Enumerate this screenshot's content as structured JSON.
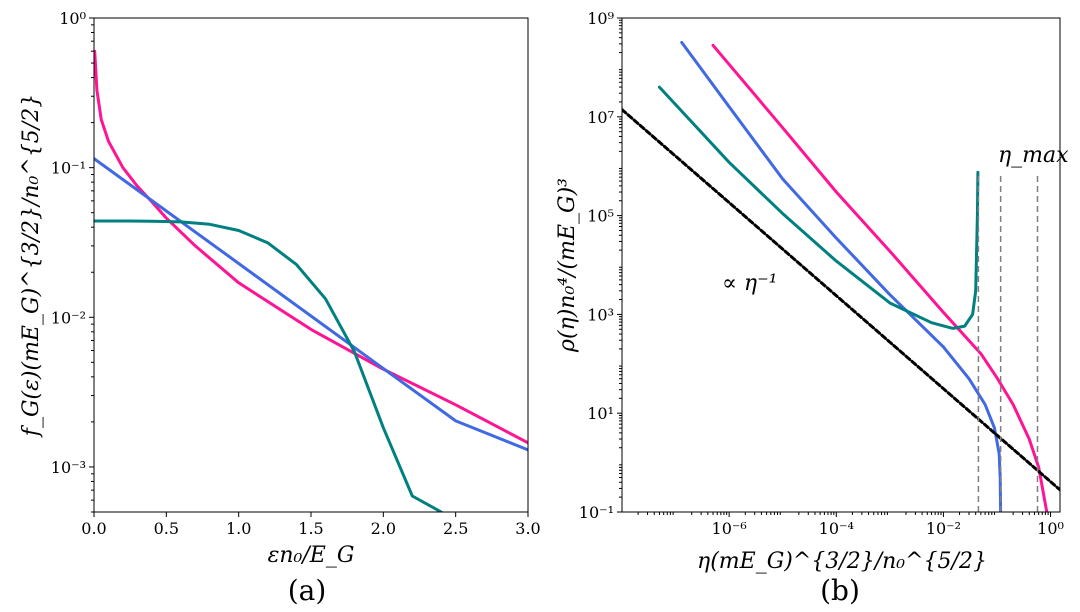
{
  "chart_data": [
    {
      "type": "line",
      "panel_label": "(a)",
      "xlabel": "εn₀/E_G",
      "ylabel": "f_G(ε)(mE_G)^{3/2}/n₀^{5/2}",
      "xscale": "linear",
      "yscale": "log",
      "xlim": [
        0,
        3.0
      ],
      "ylim": [
        0.0005,
        1.0
      ],
      "xticks": [
        0.0,
        0.5,
        1.0,
        1.5,
        2.0,
        2.5,
        3.0
      ],
      "xticklabels": [
        "0.0",
        "0.5",
        "1.0",
        "1.5",
        "2.0",
        "2.5",
        "3.0"
      ],
      "yticks": [
        0.001,
        0.01,
        0.1,
        1.0
      ],
      "yticklabels": [
        "10⁻³",
        "10⁻²",
        "10⁻¹",
        "10⁰"
      ],
      "series": [
        {
          "name": "magenta",
          "color": "#ff1493",
          "x": [
            0.005,
            0.02,
            0.05,
            0.1,
            0.2,
            0.3,
            0.4,
            0.5,
            0.7,
            1.0,
            1.5,
            2.0,
            2.5,
            3.0
          ],
          "y": [
            0.6,
            0.33,
            0.21,
            0.15,
            0.1,
            0.075,
            0.059,
            0.046,
            0.03,
            0.017,
            0.0083,
            0.0045,
            0.0026,
            0.00145
          ]
        },
        {
          "name": "blue",
          "color": "#4169e1",
          "x": [
            0.0,
            0.5,
            1.0,
            1.5,
            2.0,
            2.5,
            3.0
          ],
          "y": [
            0.115,
            0.0513,
            0.0229,
            0.0102,
            0.00455,
            0.00203,
            0.0013
          ]
        },
        {
          "name": "teal",
          "color": "#008080",
          "x": [
            0.0,
            0.2,
            0.4,
            0.6,
            0.8,
            1.0,
            1.2,
            1.4,
            1.6,
            1.8,
            2.0,
            2.2,
            2.4
          ],
          "y": [
            0.044,
            0.044,
            0.0439,
            0.0434,
            0.0418,
            0.038,
            0.0315,
            0.0225,
            0.0133,
            0.0059,
            0.00183,
            0.00064,
            0.0005
          ]
        }
      ]
    },
    {
      "type": "line",
      "panel_label": "(b)",
      "xlabel": "η(mE_G)^{3/2}/n₀^{5/2}",
      "ylabel": "ρ(η)n₀⁴/(mE_G)³",
      "xscale": "log",
      "yscale": "log",
      "xlim": [
        1e-08,
        1.5
      ],
      "ylim": [
        0.1,
        1000000000.0
      ],
      "xticks": [
        1e-06,
        0.0001,
        0.01,
        1.0
      ],
      "xticklabels": [
        "10⁻⁶",
        "10⁻⁴",
        "10⁻²",
        "10⁰"
      ],
      "yticks": [
        0.1,
        10,
        1000,
        100000,
        10000000,
        1000000000
      ],
      "yticklabels": [
        "10⁻¹",
        "10¹",
        "10³",
        "10⁵",
        "10⁷",
        "10⁹"
      ],
      "annotations": [
        {
          "text": "∝ η⁻¹",
          "x": 1e-06,
          "y": 3000
        },
        {
          "text": "η_max",
          "x": 0.11,
          "y": 1500000.0
        }
      ],
      "series": [
        {
          "name": "magenta",
          "color": "#ff1493",
          "x": [
            5e-07,
            1e-05,
            0.0001,
            0.001,
            0.01,
            0.05,
            0.1,
            0.2,
            0.4,
            0.6,
            0.85
          ],
          "y": [
            280000000.0,
            6000000.0,
            300000.0,
            19000.0,
            1100,
            160,
            52,
            15,
            3,
            0.8,
            0.1
          ]
        },
        {
          "name": "blue",
          "color": "#4169e1",
          "x": [
            1.3e-07,
            1e-06,
            1e-05,
            0.0001,
            0.001,
            0.01,
            0.03,
            0.06,
            0.09,
            0.11,
            0.115,
            0.117
          ],
          "y": [
            320000000.0,
            16000000.0,
            550000.0,
            35000.0,
            2500,
            220,
            50,
            15,
            5,
            1.5,
            0.5,
            0.1
          ]
        },
        {
          "name": "teal",
          "color": "#008080",
          "x": [
            5e-08,
            1e-06,
            1e-05,
            0.0001,
            0.001,
            0.006,
            0.015,
            0.025,
            0.035,
            0.04,
            0.043,
            0.044
          ],
          "y": [
            40000000.0,
            1200000.0,
            110000.0,
            12000.0,
            1700,
            680,
            520,
            580,
            1000,
            3000,
            100000.0,
            750000.0
          ]
        },
        {
          "name": "reference ∝ η⁻¹",
          "color": "#000000",
          "style": "dashed",
          "x": [
            1e-08,
            1.5
          ],
          "y": [
            14000000.0,
            0.28
          ]
        },
        {
          "name": "η_max markers",
          "color": "#808080",
          "style": "dashed-vertical",
          "x_values": [
            0.045,
            0.117,
            0.57
          ],
          "y_range": [
            0.1,
            750000.0
          ]
        }
      ]
    }
  ]
}
